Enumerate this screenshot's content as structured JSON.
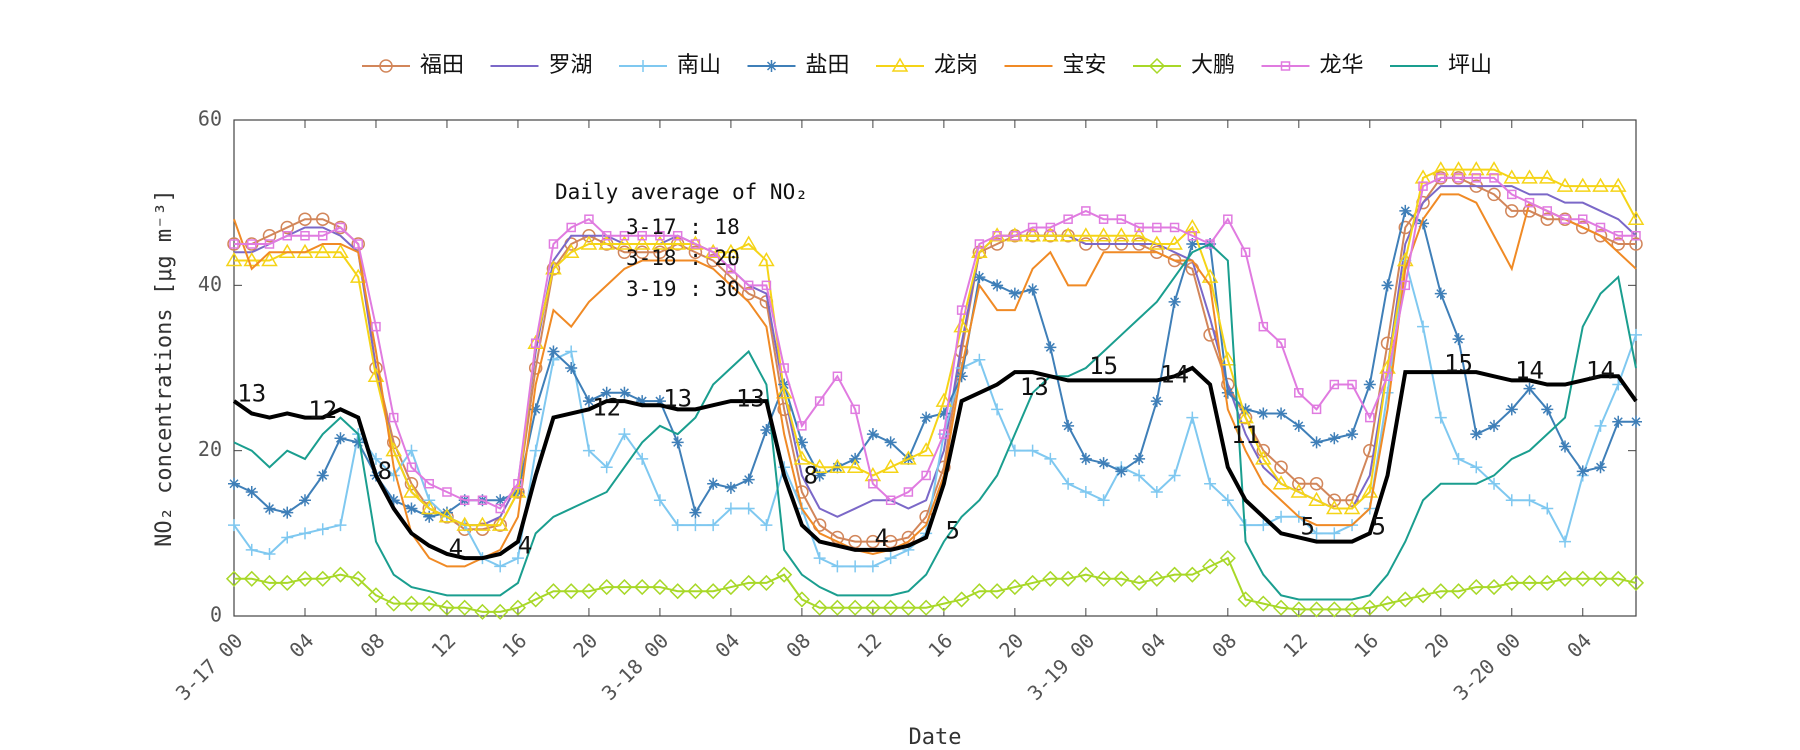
{
  "chart_data": {
    "type": "line",
    "xlabel": "Date",
    "ylabel": "NO₂ concentrations [μg m⁻³]",
    "xlim": [
      0,
      79
    ],
    "ylim": [
      0,
      60
    ],
    "yticks": [
      0,
      20,
      40,
      60
    ],
    "xticks": [
      {
        "value": 0,
        "label": "3-17 00"
      },
      {
        "value": 4,
        "label": "04"
      },
      {
        "value": 8,
        "label": "08"
      },
      {
        "value": 12,
        "label": "12"
      },
      {
        "value": 16,
        "label": "16"
      },
      {
        "value": 20,
        "label": "20"
      },
      {
        "value": 24,
        "label": "3-18 00"
      },
      {
        "value": 28,
        "label": "04"
      },
      {
        "value": 32,
        "label": "08"
      },
      {
        "value": 36,
        "label": "12"
      },
      {
        "value": 40,
        "label": "16"
      },
      {
        "value": 44,
        "label": "20"
      },
      {
        "value": 48,
        "label": "3-19 00"
      },
      {
        "value": 52,
        "label": "04"
      },
      {
        "value": 56,
        "label": "08"
      },
      {
        "value": 60,
        "label": "12"
      },
      {
        "value": 64,
        "label": "16"
      },
      {
        "value": 68,
        "label": "20"
      },
      {
        "value": 72,
        "label": "3-20 00"
      },
      {
        "value": 76,
        "label": "04"
      }
    ],
    "x": [
      0,
      1,
      2,
      3,
      4,
      5,
      6,
      7,
      8,
      9,
      10,
      11,
      12,
      13,
      14,
      15,
      16,
      17,
      18,
      19,
      20,
      21,
      22,
      23,
      24,
      25,
      26,
      27,
      28,
      29,
      30,
      31,
      32,
      33,
      34,
      35,
      36,
      37,
      38,
      39,
      40,
      41,
      42,
      43,
      44,
      45,
      46,
      47,
      48,
      49,
      50,
      51,
      52,
      53,
      54,
      55,
      56,
      57,
      58,
      59,
      60,
      61,
      62,
      63,
      64,
      65,
      66,
      67,
      68,
      69,
      70,
      71,
      72,
      73,
      74,
      75,
      76,
      77,
      78,
      79
    ],
    "series": [
      {
        "name": "福田",
        "color": "#d2865a",
        "marker": "circle",
        "values": [
          45,
          45,
          46,
          47,
          48,
          48,
          47,
          45,
          30,
          21,
          16,
          13,
          12,
          10.5,
          10.5,
          11,
          15,
          30,
          42,
          45,
          46,
          45,
          44,
          44,
          44,
          45,
          44,
          43,
          41,
          39,
          38,
          25,
          15,
          11,
          9.5,
          9,
          9,
          9,
          9.5,
          12,
          18,
          32,
          44,
          45,
          46,
          46,
          46,
          46,
          45,
          45,
          45,
          45,
          44,
          43,
          42,
          34,
          28,
          24,
          20,
          18,
          16,
          16,
          14,
          14,
          20,
          33,
          47,
          50,
          53,
          53,
          52,
          51,
          49,
          49,
          48,
          48,
          47,
          46,
          45,
          45
        ]
      },
      {
        "name": "罗湖",
        "color": "#7b68c8",
        "marker": "none",
        "values": [
          44,
          44,
          45,
          46,
          47,
          47,
          46,
          44,
          30,
          20,
          15,
          13,
          12,
          11,
          11,
          12,
          16,
          32,
          43,
          46,
          46,
          46,
          45,
          45,
          45,
          46,
          45,
          44,
          42,
          40,
          39,
          27,
          17,
          13,
          12,
          13,
          14,
          14,
          13,
          14,
          20,
          33,
          44,
          46,
          46,
          46,
          46,
          46,
          45,
          45,
          45,
          45,
          45,
          44,
          43,
          36,
          28,
          22,
          18,
          16,
          15,
          14,
          13,
          13,
          17,
          30,
          45,
          50,
          52,
          52,
          52,
          52,
          52,
          51,
          51,
          50,
          50,
          49,
          48,
          46
        ]
      },
      {
        "name": "南山",
        "color": "#7fc8f0",
        "marker": "plus",
        "values": [
          11,
          8,
          7.5,
          9.5,
          10,
          10.5,
          11,
          22,
          19,
          17,
          20,
          14,
          12,
          11,
          7,
          6,
          7,
          20,
          31,
          32,
          20,
          18,
          22,
          19,
          14,
          11,
          11,
          11,
          13,
          13,
          11,
          18,
          13,
          7,
          6,
          6,
          6,
          7,
          8,
          10,
          22,
          30,
          31,
          25,
          20,
          20,
          19,
          16,
          15,
          14,
          18,
          17,
          15,
          17,
          24,
          16,
          14,
          11,
          11,
          12,
          12,
          10,
          10,
          11,
          13,
          27,
          43,
          35,
          24,
          19,
          18,
          16,
          14,
          14,
          13,
          9,
          17,
          23,
          28,
          34
        ]
      },
      {
        "name": "盐田",
        "color": "#3f7fb8",
        "marker": "star",
        "values": [
          16,
          15,
          13,
          12.5,
          14,
          17,
          21.5,
          21,
          17,
          14,
          13,
          12,
          12.5,
          14,
          14,
          14,
          15,
          25,
          32,
          30,
          26,
          27,
          27,
          26,
          26,
          21,
          12.5,
          16,
          15.5,
          16.5,
          22.5,
          28,
          21,
          17,
          18,
          19,
          22,
          21,
          19,
          24,
          24.5,
          29,
          41,
          40,
          39,
          39.5,
          32.5,
          23,
          19,
          18.5,
          17.5,
          19,
          26,
          38,
          45,
          45,
          27,
          25,
          24.5,
          24.5,
          23,
          21,
          21.5,
          22,
          28,
          40,
          49,
          47.5,
          39,
          33.5,
          22,
          23,
          25,
          27.5,
          25,
          20.5,
          17.5,
          18,
          23.5,
          23.5
        ]
      },
      {
        "name": "龙岗",
        "color": "#f5d417",
        "marker": "triangle",
        "values": [
          43,
          43,
          43,
          44,
          44,
          44,
          44,
          41,
          29,
          20,
          15,
          13,
          12,
          11,
          11,
          11,
          15,
          33,
          42,
          44,
          45,
          45,
          45,
          45,
          45,
          45,
          45,
          44,
          44,
          45,
          43,
          27,
          19,
          18,
          18,
          18,
          17,
          18,
          19,
          20,
          26,
          35,
          44,
          46,
          46,
          46,
          46,
          46,
          46,
          46,
          46,
          46,
          45,
          45,
          47,
          41,
          31,
          24,
          19,
          16,
          15,
          14,
          13,
          13,
          15,
          30,
          43,
          53,
          54,
          54,
          54,
          54,
          53,
          53,
          53,
          52,
          52,
          52,
          52,
          48
        ]
      },
      {
        "name": "宝安",
        "color": "#f08a25",
        "marker": "none",
        "values": [
          48,
          42,
          44,
          44,
          44,
          45,
          45,
          44,
          32,
          18,
          10,
          7,
          6,
          6,
          7,
          8,
          12,
          28,
          37,
          35,
          38,
          40,
          42,
          43,
          43,
          43,
          43,
          42,
          40,
          38,
          35,
          22,
          13,
          10,
          9,
          8,
          7.5,
          8,
          9,
          11,
          17,
          30,
          40,
          37,
          37,
          42,
          44,
          40,
          40,
          44,
          44,
          44,
          44,
          43,
          43,
          40,
          25,
          20,
          16,
          14,
          12,
          11,
          11,
          11,
          13,
          25,
          42,
          48,
          51,
          51,
          50,
          46,
          42,
          50,
          49,
          48,
          47,
          46,
          44,
          42
        ]
      },
      {
        "name": "大鹏",
        "color": "#a8d828",
        "marker": "diamond",
        "values": [
          4.5,
          4.5,
          4,
          4,
          4.5,
          4.5,
          5,
          4.5,
          2.5,
          1.5,
          1.5,
          1.5,
          1,
          1,
          0.5,
          0.5,
          1,
          2,
          3,
          3,
          3,
          3.5,
          3.5,
          3.5,
          3.5,
          3,
          3,
          3,
          3.5,
          4,
          4,
          5,
          2,
          1,
          1,
          1,
          1,
          1,
          1,
          1,
          1.5,
          2,
          3,
          3,
          3.5,
          4,
          4.5,
          4.5,
          5,
          4.5,
          4.5,
          4,
          4.5,
          5,
          5,
          6,
          7,
          2,
          1.5,
          1,
          0.8,
          0.8,
          0.8,
          0.8,
          1,
          1.5,
          2,
          2.5,
          3,
          3,
          3.5,
          3.5,
          4,
          4,
          4,
          4.5,
          4.5,
          4.5,
          4.5,
          4
        ]
      },
      {
        "name": "龙华",
        "color": "#e07be0",
        "marker": "square",
        "values": [
          45,
          45,
          45,
          46,
          46,
          46,
          47,
          45,
          35,
          24,
          18,
          16,
          15,
          14,
          14,
          13,
          16,
          33,
          45,
          47,
          48,
          46,
          46,
          46,
          46,
          46,
          45,
          44,
          42,
          40,
          40,
          30,
          23,
          26,
          29,
          25,
          16,
          14,
          15,
          17,
          22,
          37,
          45,
          46,
          46,
          47,
          47,
          48,
          49,
          48,
          48,
          47,
          47,
          47,
          46,
          45,
          48,
          44,
          35,
          33,
          27,
          25,
          28,
          28,
          24,
          29,
          40,
          52,
          53,
          53,
          53,
          53,
          51,
          50,
          49,
          48,
          48,
          47,
          46,
          46
        ]
      },
      {
        "name": "坪山",
        "color": "#1a9e8f",
        "marker": "none",
        "values": [
          21,
          20,
          18,
          20,
          19,
          22,
          24,
          22,
          9,
          5,
          3.5,
          3,
          2.5,
          2.5,
          2.5,
          2.5,
          4,
          10,
          12,
          13,
          14,
          15,
          18,
          21,
          23,
          22,
          24,
          28,
          30,
          32,
          28,
          8,
          5,
          3.5,
          2.5,
          2.5,
          2.5,
          2.5,
          3,
          5,
          9,
          12,
          14,
          17,
          22,
          27,
          29,
          29,
          30,
          32,
          34,
          36,
          38,
          41,
          44,
          45,
          43,
          9,
          5,
          2.5,
          2,
          2,
          2,
          2,
          2.5,
          5,
          9,
          14,
          16,
          16,
          16,
          17,
          19,
          20,
          22,
          24,
          35,
          39,
          41,
          30
        ]
      }
    ],
    "average": {
      "color": "#000000",
      "values": [
        26,
        24.5,
        24,
        24.5,
        24,
        24,
        25,
        24,
        17,
        13,
        10,
        8.5,
        7.5,
        7,
        7,
        7.5,
        9,
        17,
        24,
        24.5,
        25,
        26,
        26,
        25.5,
        25.5,
        25,
        25,
        25.5,
        26,
        26,
        26,
        17,
        11,
        9,
        8.5,
        8,
        8,
        8,
        8.5,
        9.5,
        16,
        26,
        27,
        28,
        29.5,
        29.5,
        29,
        28.5,
        28.5,
        28.5,
        28.5,
        28.5,
        28.5,
        29,
        30,
        28,
        18,
        14,
        12,
        10,
        9.5,
        9,
        9,
        9,
        10,
        17,
        29.5,
        29.5,
        29.5,
        29.5,
        29.5,
        29,
        28.5,
        28.5,
        28,
        28,
        28.5,
        29,
        29,
        26
      ]
    },
    "annotations": [
      {
        "x": 1,
        "y": 26.8,
        "text": "13"
      },
      {
        "x": 5,
        "y": 24.8,
        "text": "12"
      },
      {
        "x": 8.5,
        "y": 17.4,
        "text": "8"
      },
      {
        "x": 12.5,
        "y": 8.1,
        "text": "4"
      },
      {
        "x": 16.4,
        "y": 8.4,
        "text": "4"
      },
      {
        "x": 21,
        "y": 25.1,
        "text": "12"
      },
      {
        "x": 25,
        "y": 26.2,
        "text": "13"
      },
      {
        "x": 29.1,
        "y": 26.2,
        "text": "13"
      },
      {
        "x": 32.5,
        "y": 16.9,
        "text": "8"
      },
      {
        "x": 36.5,
        "y": 9.3,
        "text": "4"
      },
      {
        "x": 40.5,
        "y": 10.2,
        "text": "5"
      },
      {
        "x": 45.1,
        "y": 27.6,
        "text": "13"
      },
      {
        "x": 49,
        "y": 30.1,
        "text": "15"
      },
      {
        "x": 53,
        "y": 29.1,
        "text": "14"
      },
      {
        "x": 57,
        "y": 21.8,
        "text": "11"
      },
      {
        "x": 60.5,
        "y": 10.7,
        "text": "5"
      },
      {
        "x": 64.5,
        "y": 10.7,
        "text": "5"
      },
      {
        "x": 69,
        "y": 30.4,
        "text": "15"
      },
      {
        "x": 73,
        "y": 29.6,
        "text": "14"
      },
      {
        "x": 77,
        "y": 29.6,
        "text": "14"
      }
    ],
    "daily_average": {
      "title": "Daily average of NO₂",
      "lines": [
        "3-17 : 18",
        "3-18 : 20",
        "3-19 : 30"
      ]
    }
  }
}
